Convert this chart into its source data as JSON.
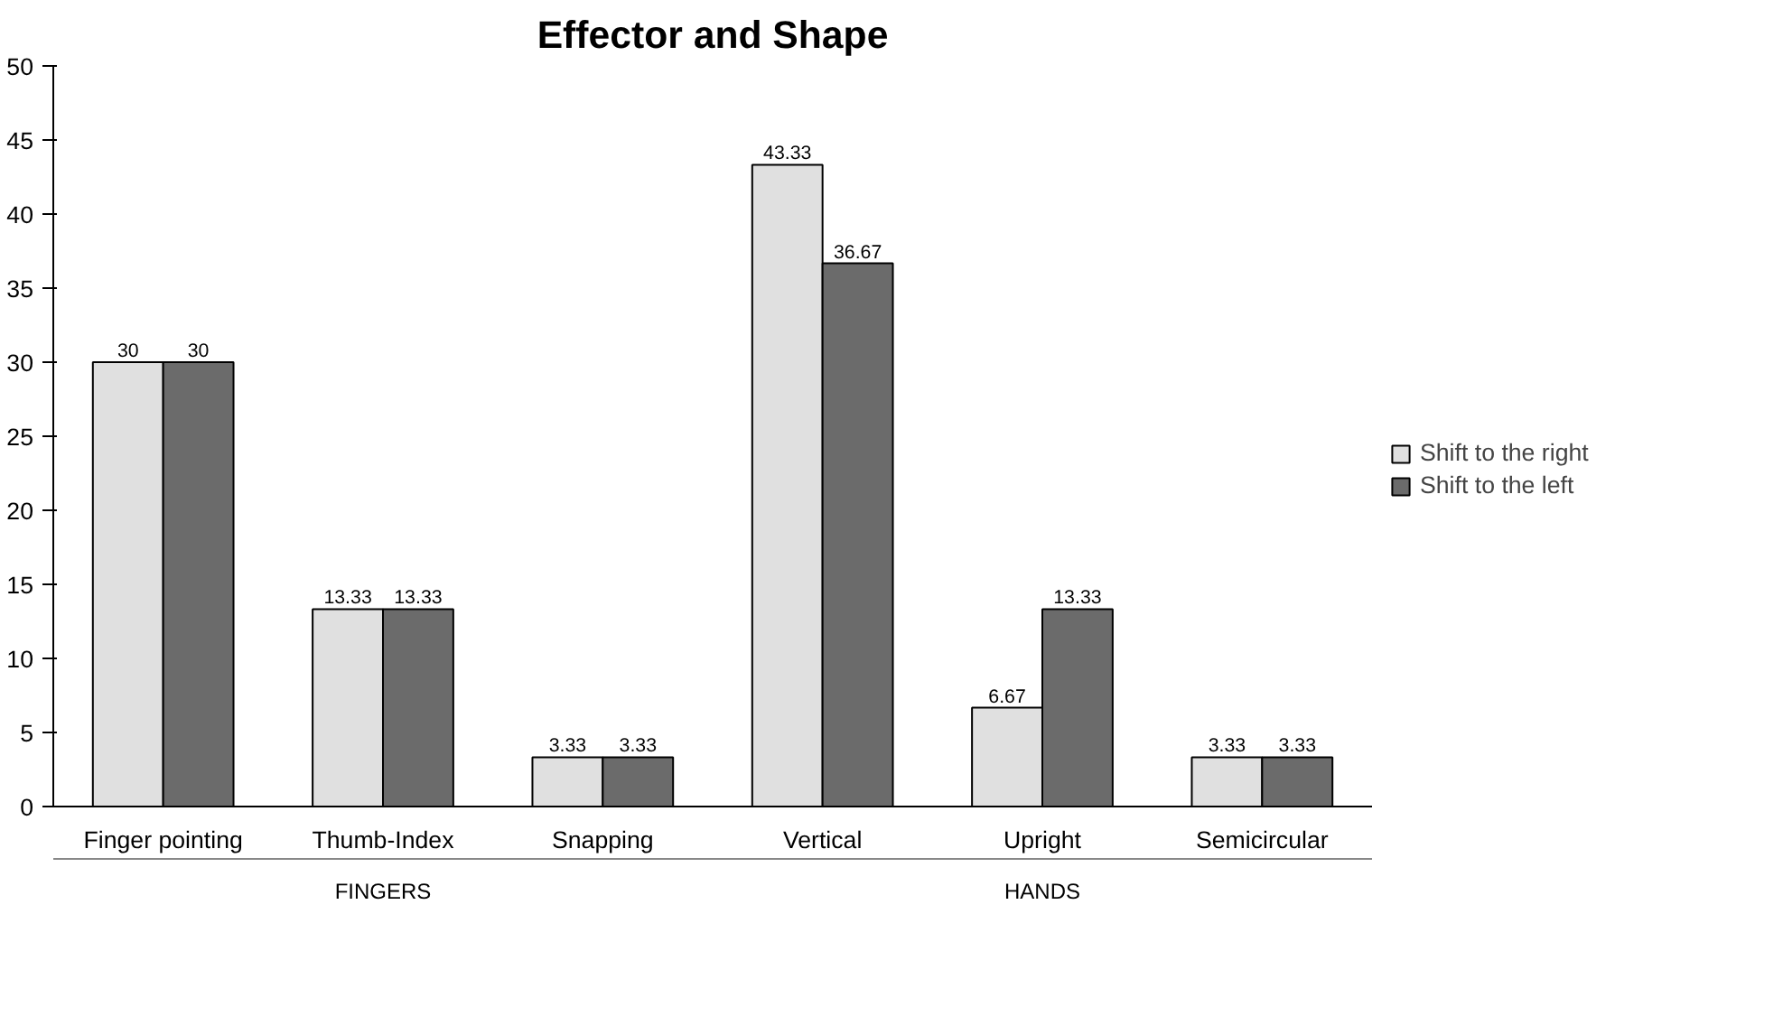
{
  "chart_data": {
    "type": "bar",
    "title": "Effector and Shape",
    "categories": [
      "Finger pointing",
      "Thumb-Index",
      "Snapping",
      "Vertical",
      "Upright",
      "Semicircular"
    ],
    "series": [
      {
        "name": "Shift to the right",
        "color": "#e0e0e0",
        "values": [
          30,
          13.33,
          3.33,
          43.33,
          6.67,
          3.33
        ]
      },
      {
        "name": "Shift to the left",
        "color": "#6b6b6b",
        "values": [
          30,
          13.33,
          3.33,
          36.67,
          13.33,
          3.33
        ]
      }
    ],
    "ylim": [
      0,
      50
    ],
    "yticks": [
      0,
      5,
      10,
      15,
      20,
      25,
      30,
      35,
      40,
      45,
      50
    ],
    "annotations": [
      "FINGERS",
      "HANDS"
    ],
    "data_labels": true,
    "grid": false,
    "legend": "right"
  }
}
